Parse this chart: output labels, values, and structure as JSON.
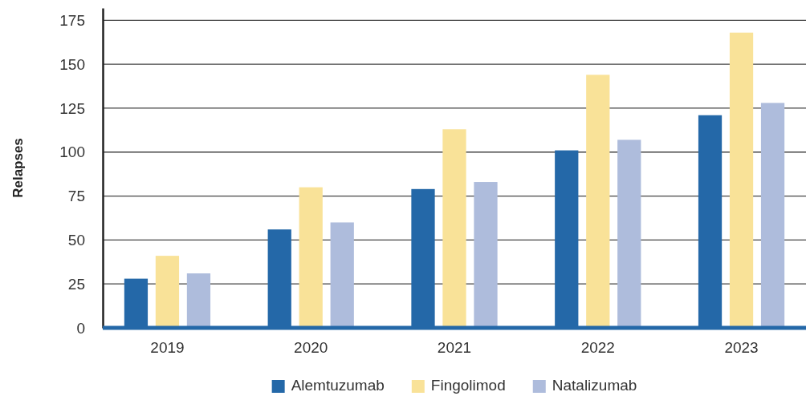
{
  "chart_data": {
    "type": "bar",
    "ylabel": "Relapses",
    "categories": [
      "2019",
      "2020",
      "2021",
      "2022",
      "2023"
    ],
    "series": [
      {
        "name": "Alemtuzumab",
        "color": "#2468a8",
        "values": [
          28,
          56,
          79,
          101,
          121
        ]
      },
      {
        "name": "Fingolimod",
        "color": "#f9e298",
        "values": [
          41,
          80,
          113,
          144,
          168
        ]
      },
      {
        "name": "Natalizumab",
        "color": "#aebcdc",
        "values": [
          31,
          60,
          83,
          107,
          128
        ]
      }
    ],
    "ylim": [
      0,
      182
    ],
    "yticks": [
      0,
      25,
      50,
      75,
      100,
      125,
      150,
      175
    ],
    "grid": "y",
    "legend": "bottom"
  }
}
